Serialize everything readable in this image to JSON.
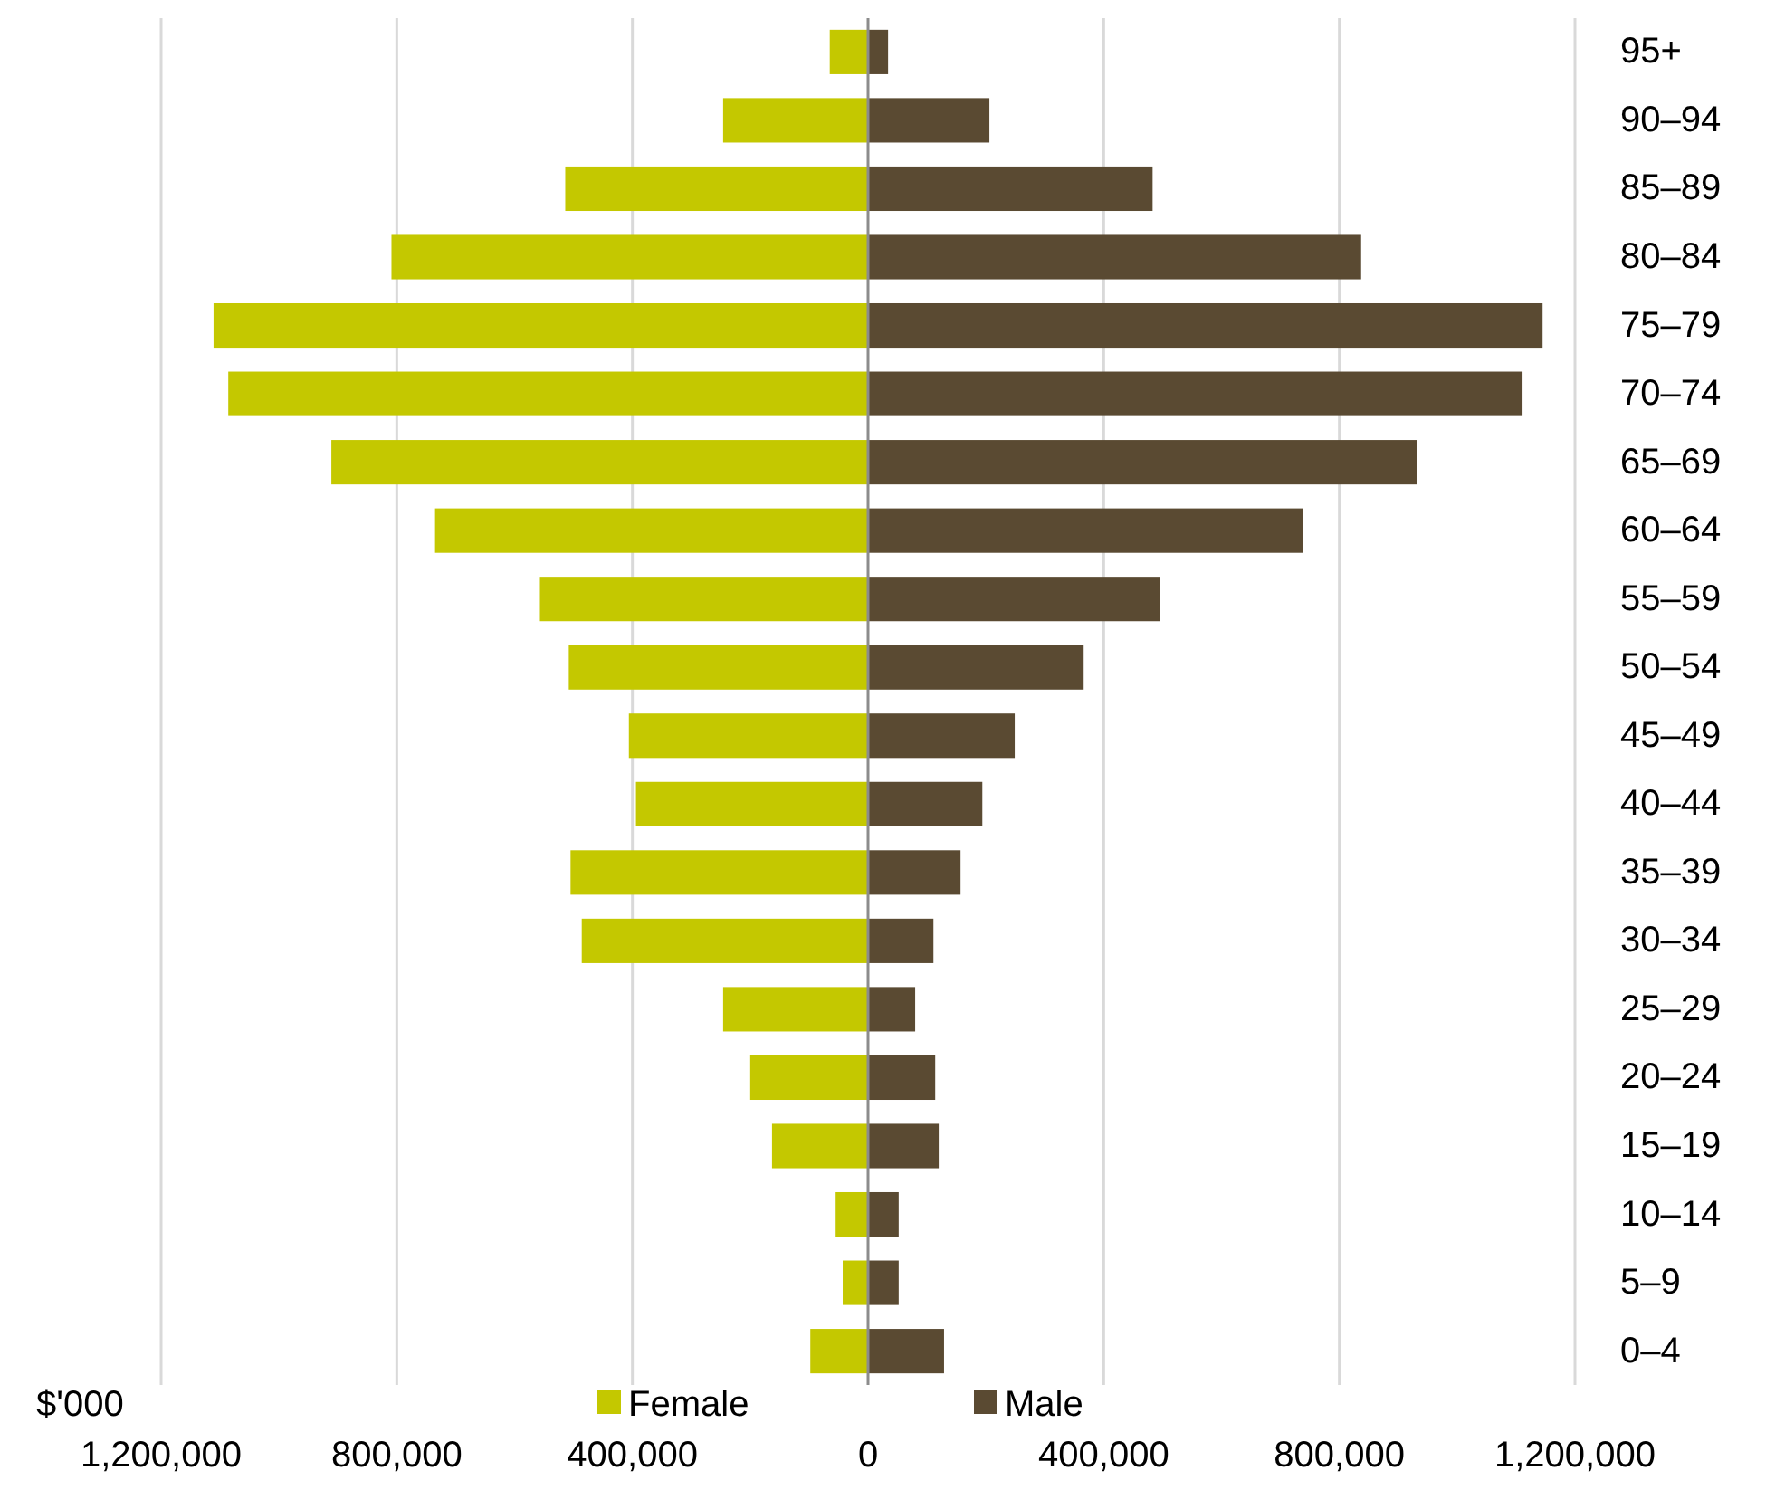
{
  "chart_data": {
    "type": "bar",
    "orientation": "horizontal",
    "stacked": true,
    "xlabel": "$'000",
    "categories": [
      "95+",
      "90–94",
      "85–89",
      "80–84",
      "75–79",
      "70–74",
      "65–69",
      "60–64",
      "55–59",
      "50–54",
      "45–49",
      "40–44",
      "35–39",
      "30–34",
      "25–29",
      "20–24",
      "15–19",
      "10–14",
      "5–9",
      "0–4"
    ],
    "series": [
      {
        "name": "Female",
        "color": "#c4c800",
        "values": [
          -65000,
          -246000,
          -514000,
          -809000,
          -1111000,
          -1086000,
          -911000,
          -735000,
          -557000,
          -508000,
          -406000,
          -394000,
          -505000,
          -486000,
          -246000,
          -200000,
          -163000,
          -55000,
          -43000,
          -98000
        ]
      },
      {
        "name": "Male",
        "color": "#5a4a32",
        "values": [
          34000,
          206000,
          483000,
          837000,
          1145000,
          1111000,
          932000,
          738000,
          495000,
          366000,
          249000,
          194000,
          157000,
          111000,
          80000,
          114000,
          120000,
          52000,
          52000,
          129000
        ]
      }
    ],
    "xlim": [
      -1200000,
      1200000
    ],
    "xticks": [
      {
        "value": -1200000,
        "label": "1,200,000"
      },
      {
        "value": -800000,
        "label": "800,000"
      },
      {
        "value": -400000,
        "label": "400,000"
      },
      0,
      {
        "value": 400000,
        "label": "400,000"
      },
      {
        "value": 800000,
        "label": "800,000"
      },
      {
        "value": 1200000,
        "label": "1,200,000"
      }
    ],
    "grid": "x",
    "legend": "bottom"
  }
}
